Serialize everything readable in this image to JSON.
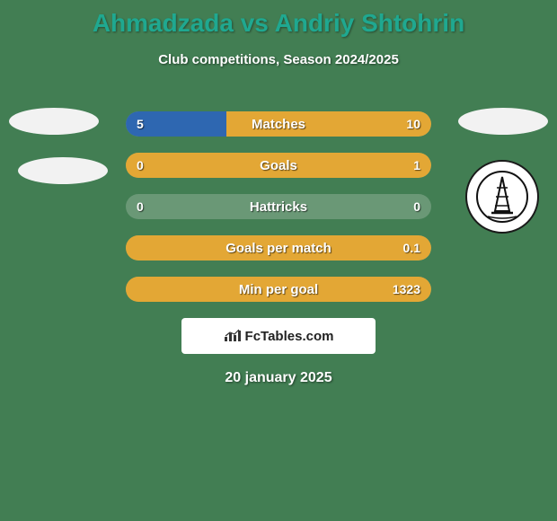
{
  "header": {
    "title": "Ahmadzada vs Andriy Shtohrin",
    "title_color": "#1fa890",
    "subtitle": "Club competitions, Season 2024/2025"
  },
  "background": {
    "color": "#427e53"
  },
  "player_left": {
    "color": "#2e67b1"
  },
  "player_right": {
    "color": "#e3a735"
  },
  "stats": {
    "bar_bg": "#6a9876",
    "rows": [
      {
        "label": "Matches",
        "left_val": "5",
        "right_val": "10",
        "left_pct": 33,
        "right_pct": 67
      },
      {
        "label": "Goals",
        "left_val": "0",
        "right_val": "1",
        "left_pct": 0,
        "right_pct": 100
      },
      {
        "label": "Hattricks",
        "left_val": "0",
        "right_val": "0",
        "left_pct": 0,
        "right_pct": 0
      },
      {
        "label": "Goals per match",
        "left_val": "",
        "right_val": "0.1",
        "left_pct": 0,
        "right_pct": 100
      },
      {
        "label": "Min per goal",
        "left_val": "",
        "right_val": "1323",
        "left_pct": 0,
        "right_pct": 100
      }
    ]
  },
  "brand": {
    "text": "FcTables.com"
  },
  "date": "20 january 2025"
}
